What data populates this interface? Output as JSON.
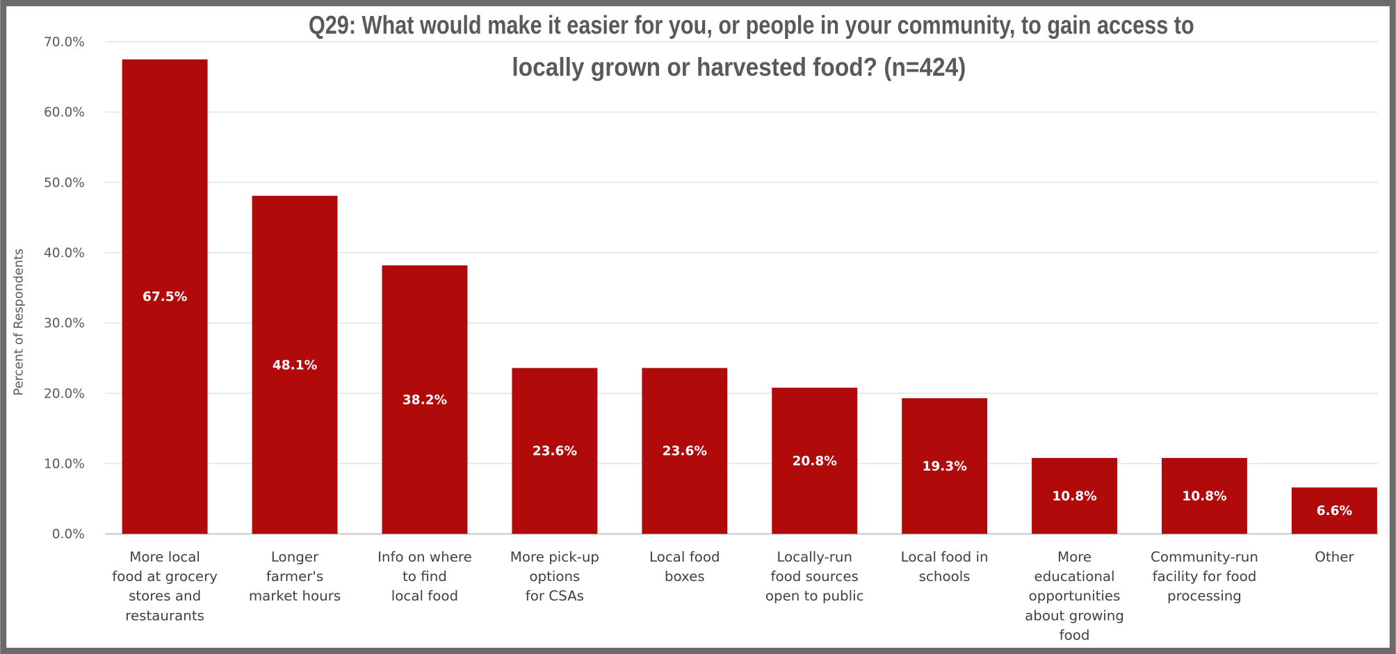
{
  "chart_data": {
    "type": "bar",
    "title_lines": [
      "Q29: What would make it easier for you, or people in your community, to gain access to",
      "locally grown or harvested food? (n=424)"
    ],
    "xlabel": "",
    "ylabel": "Percent of Respondents",
    "ylim": [
      0,
      70
    ],
    "yticks": [
      "0.0%",
      "10.0%",
      "20.0%",
      "30.0%",
      "40.0%",
      "50.0%",
      "60.0%",
      "70.0%"
    ],
    "grid": true,
    "bar_color": "#B00A0A",
    "categories": [
      [
        "More local",
        "food at grocery",
        "stores and",
        "restaurants"
      ],
      [
        "Longer",
        "farmer's",
        "market hours"
      ],
      [
        "Info on where",
        "to find",
        "local food"
      ],
      [
        "More pick-up",
        "options",
        "for CSAs"
      ],
      [
        "Local food",
        "boxes"
      ],
      [
        "Locally-run",
        "food sources",
        "open to public"
      ],
      [
        "Local food in",
        "schools"
      ],
      [
        "More",
        "educational",
        "opportunities",
        "about growing",
        "food"
      ],
      [
        "Community-run",
        "facility for food",
        "processing"
      ],
      [
        "Other"
      ]
    ],
    "values": [
      67.5,
      48.1,
      38.2,
      23.6,
      23.6,
      20.8,
      19.3,
      10.8,
      10.8,
      6.6
    ],
    "data_labels": [
      "67.5%",
      "48.1%",
      "38.2%",
      "23.6%",
      "23.6%",
      "20.8%",
      "19.3%",
      "10.8%",
      "10.8%",
      "6.6%"
    ]
  }
}
